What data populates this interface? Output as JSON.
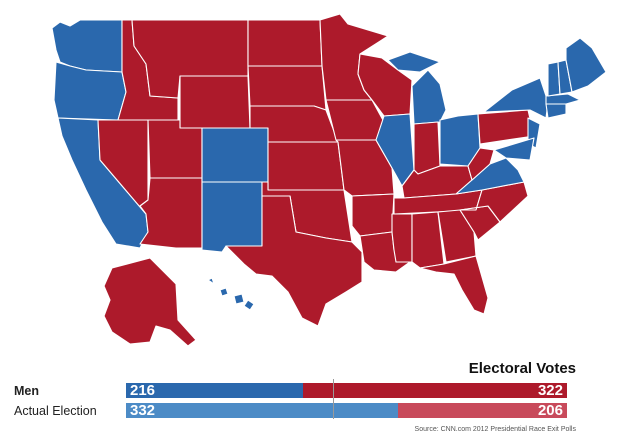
{
  "map": {
    "colors": {
      "dem": "#2a68ad",
      "rep": "#ad1a2b"
    }
  },
  "legend": {
    "title": "Electoral Votes",
    "rows": [
      {
        "label": "Men",
        "dem_value": "216",
        "rep_value": "322",
        "dem_color": "#2a68ad",
        "rep_color": "#ad1a2b"
      },
      {
        "label": "Actual Election",
        "dem_value": "332",
        "rep_value": "206",
        "dem_color": "#4c8bc6",
        "rep_color": "#c84a5b"
      }
    ]
  },
  "source": "Source: CNN.com 2012 Presidential Race Exit Polls"
}
